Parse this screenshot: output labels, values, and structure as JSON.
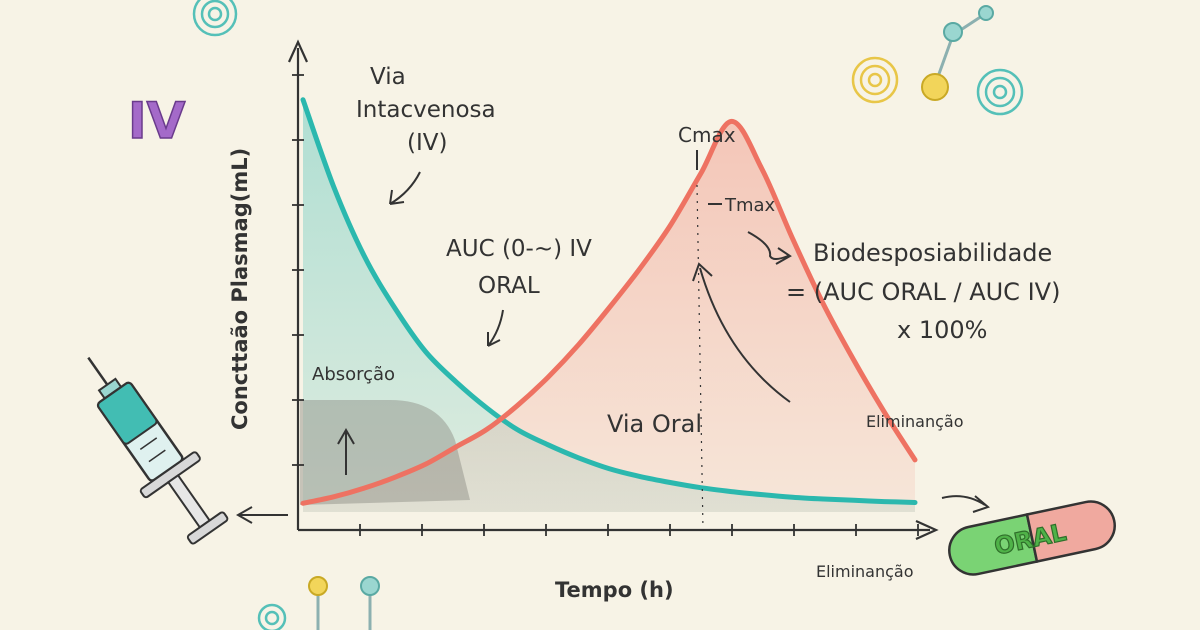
{
  "chart_data": {
    "type": "line",
    "title": "",
    "xlabel": "Tempo (h)",
    "ylabel": "Concttaão Plasmag(mL)",
    "grid": false,
    "x": [
      0,
      1,
      2,
      3,
      4,
      5,
      6,
      7,
      8,
      9,
      10,
      11,
      12,
      13,
      14,
      15,
      16,
      17,
      18,
      19,
      20
    ],
    "xlim": [
      0,
      20
    ],
    "ylim": [
      0,
      100
    ],
    "series": [
      {
        "name": "Via Intacvenosa (IV)",
        "color": "#2bb8ae",
        "values": [
          95,
          75,
          59,
          47,
          37,
          30,
          24,
          19,
          15.5,
          12.5,
          10,
          8.2,
          6.8,
          5.6,
          4.7,
          4,
          3.4,
          3,
          2.7,
          2.4,
          2.2
        ]
      },
      {
        "name": "Via Oral",
        "color": "#ee7262",
        "values": [
          2,
          3.5,
          5.5,
          8,
          11,
          15,
          19,
          24.5,
          31,
          38.5,
          47,
          56,
          66,
          78,
          90,
          79,
          63,
          48,
          35,
          23,
          12
        ]
      }
    ],
    "annotations": {
      "cmax": "Cmax",
      "tmax": "Tmax",
      "auc_1": "AUC (0-~) IV",
      "auc_2": "ORAL",
      "absorcao": "Absorção",
      "eliminacao_1": "Eliminanção",
      "eliminacao_2": "Eliminanção",
      "iv_label_1": "Via",
      "iv_label_2": "Intacvenosa",
      "iv_label_3": "(IV)",
      "oral_label": "Via Oral",
      "formula_1": "Biodesposiabilidade",
      "formula_2": "= (AUC ORAL / AUC IV)",
      "formula_3": "x 100%"
    }
  },
  "decor": {
    "iv_badge": "IV",
    "pill_text": "ORAL"
  }
}
